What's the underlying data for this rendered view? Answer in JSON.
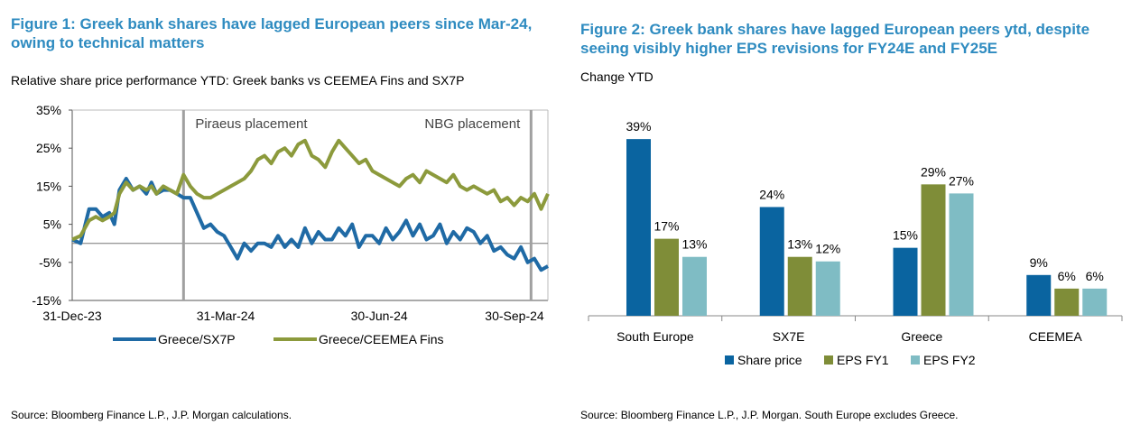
{
  "fig1": {
    "title_line1": "Figure 1: Greek bank shares have lagged European peers since Mar-24,",
    "title_line2": "owing to technical matters",
    "subtitle": "Relative share price performance YTD: Greek banks vs CEEMEA Fins and SX7P",
    "source": "Source: Bloomberg Finance L.P., J.P. Morgan calculations.",
    "colors": {
      "greece_sx7p": "#1f6aa5",
      "greece_ceemea": "#8c9a3c",
      "grid": "#999999",
      "marker": "#a0a0a0"
    }
  },
  "fig2": {
    "title_line1": "Figure 2: Greek bank shares have lagged European peers ytd, despite",
    "title_line2": "seeing visibly higher EPS revisions for FY24E and FY25E",
    "subtitle": "Change YTD",
    "source": "Source: Bloomberg Finance L.P., J.P. Morgan. South Europe excludes Greece.",
    "colors": {
      "share_price": "#0a64a0",
      "eps_fy1": "#7f8d38",
      "eps_fy2": "#7fbcc4"
    }
  },
  "chart_data": [
    {
      "type": "line",
      "title": "Relative share price performance YTD: Greek banks vs CEEMEA Fins and SX7P",
      "ylim": [
        -15,
        35
      ],
      "yticks": [
        35,
        25,
        15,
        5,
        -5,
        -15
      ],
      "ytick_labels": [
        "35%",
        "25%",
        "15%",
        "5%",
        "-5%",
        "-15%"
      ],
      "xlim": [
        0,
        282
      ],
      "xticks": [
        0,
        91,
        182,
        274
      ],
      "xtick_labels": [
        "31-Dec-23",
        "31-Mar-24",
        "30-Jun-24",
        "30-Sep-24"
      ],
      "annotations": [
        {
          "x": 66,
          "label": "Piraeus placement"
        },
        {
          "x": 272,
          "label": "NBG placement"
        }
      ],
      "legend_position": "bottom",
      "series": [
        {
          "name": "Greece/SX7P",
          "x": [
            0,
            5,
            10,
            14,
            18,
            22,
            25,
            28,
            32,
            36,
            40,
            44,
            47,
            50,
            54,
            58,
            62,
            66,
            70,
            74,
            78,
            82,
            86,
            90,
            94,
            98,
            102,
            106,
            110,
            114,
            118,
            122,
            126,
            130,
            134,
            138,
            142,
            146,
            150,
            154,
            158,
            162,
            166,
            170,
            174,
            178,
            182,
            186,
            190,
            194,
            198,
            202,
            206,
            210,
            214,
            218,
            222,
            226,
            230,
            234,
            238,
            242,
            246,
            250,
            254,
            258,
            262,
            266,
            270,
            274,
            278,
            282
          ],
          "y": [
            1,
            0,
            9,
            9,
            7,
            8,
            5,
            14,
            17,
            14,
            15,
            13,
            16,
            13,
            14,
            14,
            13,
            12,
            12,
            8,
            4,
            5,
            3,
            2,
            -1,
            -4,
            0,
            -2,
            0,
            0,
            -1,
            2,
            -1,
            1,
            -1,
            4,
            0,
            3,
            1,
            1,
            4,
            2,
            5,
            -1,
            2,
            2,
            0,
            4,
            1,
            3,
            6,
            2,
            5,
            1,
            2,
            5,
            0,
            3,
            1,
            4,
            3,
            0,
            2,
            -2,
            -1,
            -3,
            -4,
            -1,
            -5,
            -4,
            -7,
            -6
          ]
        },
        {
          "name": "Greece/CEEMEA Fins",
          "x": [
            0,
            5,
            10,
            14,
            18,
            22,
            25,
            28,
            32,
            36,
            40,
            44,
            47,
            50,
            54,
            58,
            62,
            66,
            70,
            74,
            78,
            82,
            86,
            90,
            94,
            98,
            102,
            106,
            110,
            114,
            118,
            122,
            126,
            130,
            134,
            138,
            142,
            146,
            150,
            154,
            158,
            162,
            166,
            170,
            174,
            178,
            182,
            186,
            190,
            194,
            198,
            202,
            206,
            210,
            214,
            218,
            222,
            226,
            230,
            234,
            238,
            242,
            246,
            250,
            254,
            258,
            262,
            266,
            270,
            274,
            278,
            282
          ],
          "y": [
            1,
            2,
            6,
            7,
            6,
            7,
            8,
            13,
            16,
            14,
            15,
            14,
            15,
            13,
            15,
            14,
            13,
            18,
            15,
            13,
            12,
            12,
            13,
            14,
            15,
            16,
            17,
            19,
            22,
            23,
            21,
            24,
            25,
            23,
            26,
            27,
            23,
            22,
            20,
            24,
            27,
            25,
            23,
            21,
            22,
            19,
            18,
            17,
            16,
            15,
            17,
            18,
            16,
            19,
            18,
            17,
            16,
            18,
            15,
            14,
            15,
            14,
            13,
            14,
            11,
            12,
            10,
            12,
            11,
            13,
            9,
            13
          ]
        }
      ]
    },
    {
      "type": "bar",
      "title": "Change YTD",
      "categories": [
        "South Europe",
        "SX7E",
        "Greece",
        "CEEMEA"
      ],
      "ylim": [
        0,
        45
      ],
      "legend_position": "bottom",
      "series": [
        {
          "name": "Share price",
          "values": [
            39,
            24,
            15,
            9
          ],
          "labels": [
            "39%",
            "24%",
            "15%",
            "9%"
          ]
        },
        {
          "name": "EPS FY1",
          "values": [
            17,
            13,
            29,
            6
          ],
          "labels": [
            "17%",
            "13%",
            "29%",
            "6%"
          ]
        },
        {
          "name": "EPS FY2",
          "values": [
            13,
            12,
            27,
            6
          ],
          "labels": [
            "13%",
            "12%",
            "27%",
            "6%"
          ]
        }
      ]
    }
  ]
}
